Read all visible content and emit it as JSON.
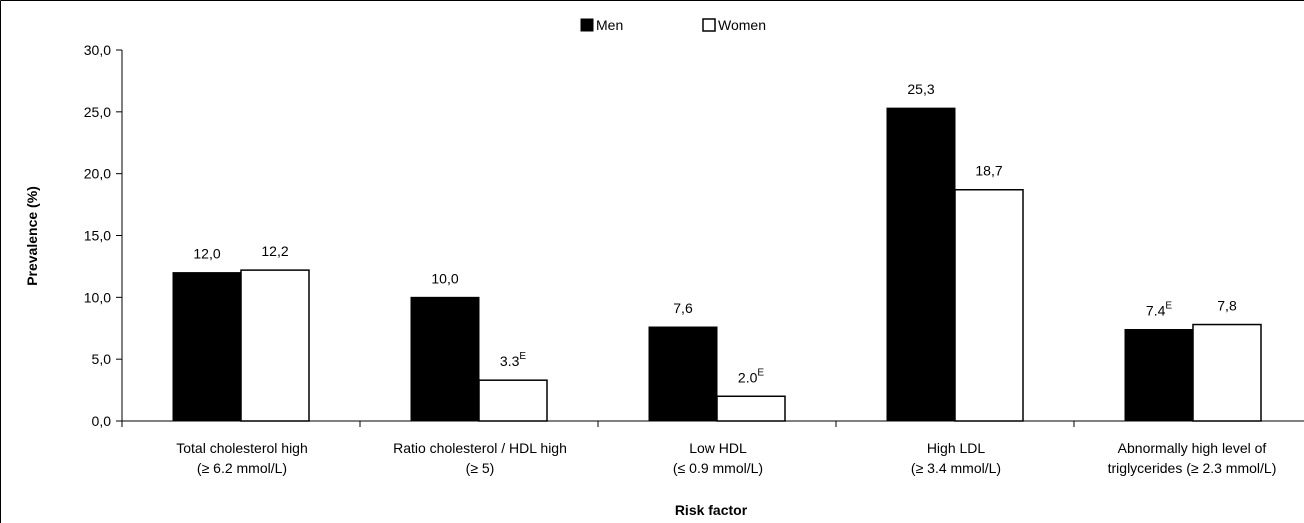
{
  "chart_data": {
    "type": "bar",
    "title": "",
    "xlabel": "Risk factor",
    "ylabel": "Prevalence (%)",
    "ylim": [
      0,
      30
    ],
    "yticks": [
      "0,0",
      "5,0",
      "10,0",
      "15,0",
      "20,0",
      "25,0",
      "30,0"
    ],
    "ytick_values": [
      0,
      5,
      10,
      15,
      20,
      25,
      30
    ],
    "legend_position": "top-center",
    "grid": false,
    "categories": [
      [
        "Total cholesterol high",
        "(≥ 6.2 mmol/L)"
      ],
      [
        "Ratio cholesterol / HDL high",
        "(≥ 5)"
      ],
      [
        "Low HDL",
        "(≤ 0.9 mmol/L)"
      ],
      [
        "High LDL",
        "(≥ 3.4 mmol/L)"
      ],
      [
        "Abnormally high level of",
        "triglycerides (≥ 2.3 mmol/L)"
      ]
    ],
    "series": [
      {
        "name": "Men",
        "fill": "#000000",
        "values": [
          12.0,
          10.0,
          7.6,
          25.3,
          7.4
        ],
        "labels": [
          "12,0",
          "10,0",
          "7,6",
          "25,3",
          "7.4"
        ],
        "label_superscripts": [
          "",
          "",
          "",
          "",
          "E"
        ]
      },
      {
        "name": "Women",
        "fill": "#ffffff",
        "values": [
          12.2,
          3.3,
          2.0,
          18.7,
          7.8
        ],
        "labels": [
          "12,2",
          "3.3",
          "2.0",
          "18,7",
          "7,8"
        ],
        "label_superscripts": [
          "",
          "E",
          "E",
          "",
          ""
        ]
      }
    ]
  }
}
